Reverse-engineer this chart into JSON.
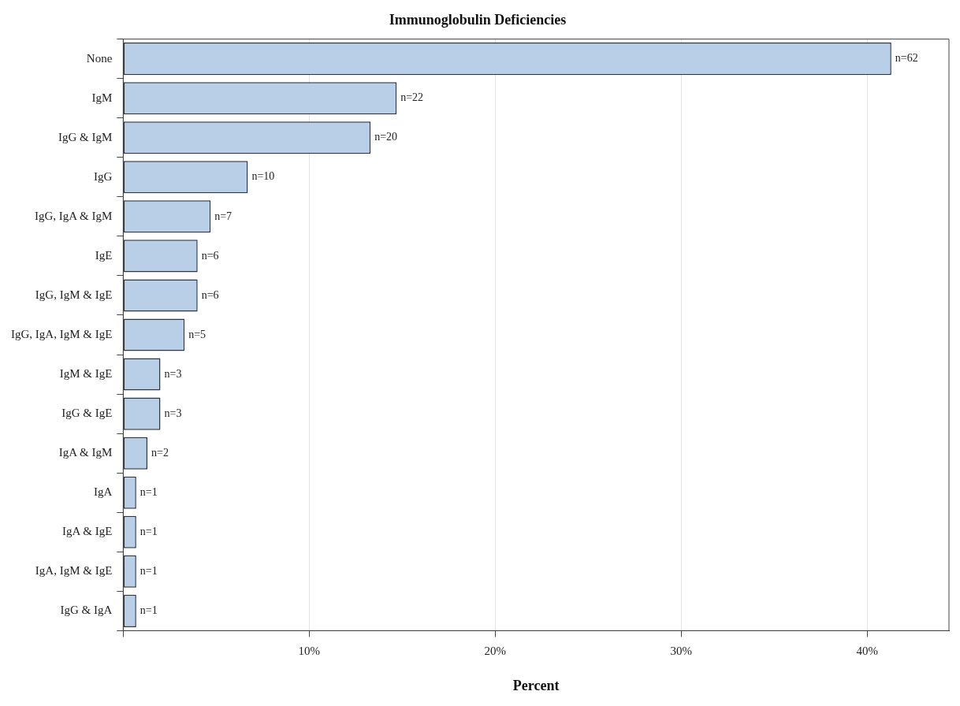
{
  "chart_data": {
    "type": "bar",
    "orientation": "horizontal",
    "title": "Immunoglobulin Deficiencies",
    "xlabel": "Percent",
    "categories": [
      "None",
      "IgM",
      "IgG & IgM",
      "IgG",
      "IgG, IgA & IgM",
      "IgE",
      "IgG, IgM & IgE",
      "IgG, IgA, IgM & IgE",
      "IgM & IgE",
      "IgG & IgE",
      "IgA & IgM",
      "IgA",
      "IgA & IgE",
      "IgA, IgM & IgE",
      "IgG & IgA"
    ],
    "values": [
      41.3,
      14.7,
      13.3,
      6.7,
      4.7,
      4.0,
      4.0,
      3.3,
      2.0,
      2.0,
      1.3,
      0.7,
      0.7,
      0.7,
      0.7
    ],
    "annotations": [
      {
        "text": "n=62",
        "x": 41.3,
        "y": "None"
      },
      {
        "text": "n=22",
        "x": 14.7,
        "y": "IgM"
      },
      {
        "text": "n=20",
        "x": 13.3,
        "y": "IgG & IgM"
      },
      {
        "text": "n=10",
        "x": 6.7,
        "y": "IgG"
      },
      {
        "text": "n=7",
        "x": 4.7,
        "y": "IgG, IgA & IgM"
      },
      {
        "text": "n=6",
        "x": 4.0,
        "y": "IgE"
      },
      {
        "text": "n=6",
        "x": 4.0,
        "y": "IgG, IgM & IgE"
      },
      {
        "text": "n=5",
        "x": 3.3,
        "y": "IgG, IgA, IgM & IgE"
      },
      {
        "text": "n=3",
        "x": 2.0,
        "y": "IgM & IgE"
      },
      {
        "text": "n=3",
        "x": 2.0,
        "y": "IgG & IgE"
      },
      {
        "text": "n=2",
        "x": 1.3,
        "y": "IgA & IgM"
      },
      {
        "text": "n=1",
        "x": 0.7,
        "y": "IgA"
      },
      {
        "text": "n=1",
        "x": 0.7,
        "y": "IgA & IgE"
      },
      {
        "text": "n=1",
        "x": 0.7,
        "y": "IgA, IgM & IgE"
      },
      {
        "text": "n=1",
        "x": 0.7,
        "y": "IgG & IgA"
      }
    ],
    "color": "#b9cfe8",
    "xlim": [
      0,
      44.4
    ],
    "xticks": [
      {
        "value": 0,
        "label": null
      },
      {
        "value": 10,
        "label": "10%"
      },
      {
        "value": 20,
        "label": "20%"
      },
      {
        "value": 30,
        "label": "30%"
      },
      {
        "value": 40,
        "label": "40%"
      }
    ],
    "grid": "x",
    "legend": false
  }
}
